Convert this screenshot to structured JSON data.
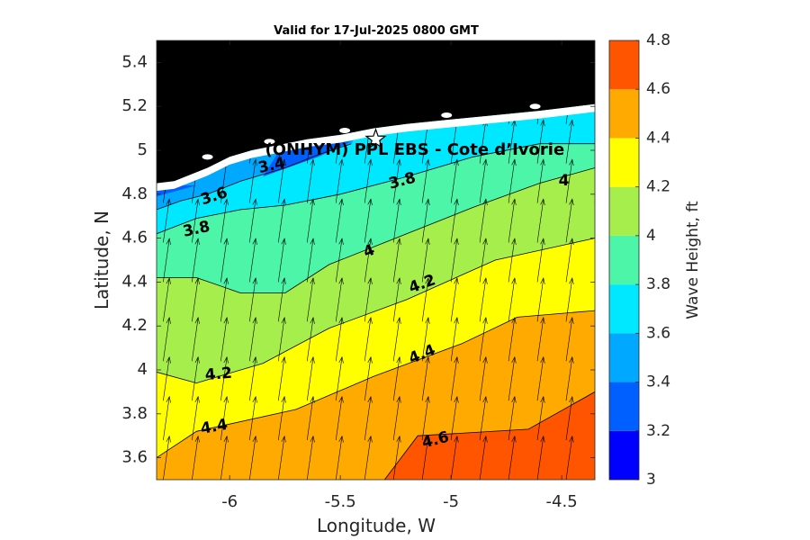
{
  "chart_data": {
    "type": "contour",
    "title": "Valid for 17-Jul-2025 0800 GMT",
    "xlabel": "Longitude, W",
    "ylabel": "Latitude, N",
    "colorbar_label": "Wave Height, ft",
    "xlim": [
      -6.33,
      -4.35
    ],
    "ylim": [
      3.5,
      5.5
    ],
    "x_ticks": [
      -6,
      -5.5,
      -5,
      -4.5
    ],
    "x_tick_labels": [
      "-6",
      "-5.5",
      "-5",
      "-4.5"
    ],
    "y_ticks": [
      3.6,
      3.8,
      4,
      4.2,
      4.4,
      4.6,
      4.8,
      5,
      5.2,
      5.4
    ],
    "y_tick_labels": [
      "3.6",
      "3.8",
      "4",
      "4.2",
      "4.4",
      "4.6",
      "4.8",
      "5",
      "5.2",
      "5.4"
    ],
    "colorbar_range": [
      3,
      4.8
    ],
    "colorbar_ticks": [
      3,
      3.2,
      3.4,
      3.6,
      3.8,
      4,
      4.2,
      4.4,
      4.6,
      4.8
    ],
    "colorbar_tick_labels": [
      "3",
      "3.2",
      "3.4",
      "3.6",
      "3.8",
      "4",
      "4.2",
      "4.4",
      "4.6",
      "4.8"
    ],
    "levels": [
      {
        "min": 3.0,
        "max": 3.2,
        "color": "#0000ff"
      },
      {
        "min": 3.2,
        "max": 3.4,
        "color": "#0060ff"
      },
      {
        "min": 3.4,
        "max": 3.6,
        "color": "#00a8ff"
      },
      {
        "min": 3.6,
        "max": 3.8,
        "color": "#00e8ff"
      },
      {
        "min": 3.8,
        "max": 4.0,
        "color": "#4cf5a8"
      },
      {
        "min": 4.0,
        "max": 4.2,
        "color": "#a6ee4c"
      },
      {
        "min": 4.2,
        "max": 4.4,
        "color": "#ffff00"
      },
      {
        "min": 4.4,
        "max": 4.6,
        "color": "#ffaa00"
      },
      {
        "min": 4.6,
        "max": 4.8,
        "color": "#ff5500"
      }
    ],
    "regions": [
      {
        "value": 4.6,
        "color": "#ff5500",
        "points": [
          [
            -6.33,
            3.5
          ],
          [
            -4.35,
            3.5
          ],
          [
            -4.35,
            5.2
          ],
          [
            -6.33,
            5.2
          ]
        ]
      },
      {
        "value": 4.4,
        "color": "#ffaa00",
        "points": [
          [
            -6.33,
            3.5
          ],
          [
            -5.3,
            3.5
          ],
          [
            -5.15,
            3.7
          ],
          [
            -4.65,
            3.73
          ],
          [
            -4.35,
            3.9
          ],
          [
            -4.35,
            5.2
          ],
          [
            -6.33,
            5.2
          ]
        ]
      },
      {
        "value": 4.2,
        "color": "#ffff00",
        "points": [
          [
            -6.33,
            3.5
          ],
          [
            -6.33,
            3.6
          ],
          [
            -6.15,
            3.72
          ],
          [
            -5.7,
            3.82
          ],
          [
            -5.35,
            3.97
          ],
          [
            -4.95,
            4.12
          ],
          [
            -4.7,
            4.24
          ],
          [
            -4.35,
            4.27
          ],
          [
            -4.35,
            5.2
          ],
          [
            -6.33,
            5.2
          ]
        ]
      },
      {
        "value": 4.0,
        "color": "#a6ee4c",
        "points": [
          [
            -6.33,
            3.5
          ],
          [
            -6.33,
            3.99
          ],
          [
            -6.15,
            3.94
          ],
          [
            -5.85,
            4.03
          ],
          [
            -5.55,
            4.19
          ],
          [
            -5.2,
            4.32
          ],
          [
            -4.8,
            4.5
          ],
          [
            -4.35,
            4.6
          ],
          [
            -4.35,
            5.2
          ],
          [
            -6.33,
            5.2
          ]
        ]
      },
      {
        "value": 3.8,
        "color": "#4cf5a8",
        "points": [
          [
            -6.33,
            3.5
          ],
          [
            -6.33,
            4.42
          ],
          [
            -6.15,
            4.42
          ],
          [
            -5.95,
            4.35
          ],
          [
            -5.75,
            4.35
          ],
          [
            -5.55,
            4.48
          ],
          [
            -5.3,
            4.58
          ],
          [
            -4.9,
            4.74
          ],
          [
            -4.6,
            4.85
          ],
          [
            -4.35,
            4.92
          ],
          [
            -4.35,
            5.2
          ],
          [
            -6.33,
            5.2
          ]
        ]
      },
      {
        "value": 3.6,
        "color": "#00e8ff",
        "points": [
          [
            -6.33,
            3.5
          ],
          [
            -6.33,
            4.62
          ],
          [
            -6.15,
            4.69
          ],
          [
            -5.95,
            4.73
          ],
          [
            -5.75,
            4.75
          ],
          [
            -5.5,
            4.8
          ],
          [
            -5.2,
            4.88
          ],
          [
            -4.9,
            4.97
          ],
          [
            -4.6,
            5.03
          ],
          [
            -4.35,
            5.03
          ],
          [
            -4.35,
            5.2
          ],
          [
            -6.33,
            5.2
          ]
        ]
      },
      {
        "value": 3.4,
        "color": "#00a8ff",
        "points": [
          [
            -6.33,
            4.73
          ],
          [
            -6.22,
            4.77
          ],
          [
            -6.1,
            4.8
          ],
          [
            -5.95,
            4.86
          ],
          [
            -5.75,
            4.92
          ],
          [
            -5.6,
            4.98
          ],
          [
            -5.45,
            5.03
          ],
          [
            -5.35,
            5.2
          ],
          [
            -6.33,
            5.2
          ]
        ]
      },
      {
        "value": 3.2,
        "color": "#0060ff",
        "points": [
          [
            -6.33,
            4.79
          ],
          [
            -6.15,
            4.84
          ],
          [
            -6.33,
            4.84
          ]
        ]
      },
      {
        "value": 3.2,
        "color": "#0060ff",
        "points": [
          [
            -5.85,
            4.88
          ],
          [
            -5.6,
            4.97
          ],
          [
            -5.45,
            5.04
          ],
          [
            -5.75,
            5.04
          ]
        ]
      }
    ],
    "contour_lines": [
      {
        "value": 4.6,
        "points": [
          [
            -5.3,
            3.5
          ],
          [
            -5.15,
            3.7
          ],
          [
            -4.65,
            3.73
          ],
          [
            -4.35,
            3.9
          ]
        ]
      },
      {
        "value": 4.4,
        "points": [
          [
            -6.33,
            3.6
          ],
          [
            -6.15,
            3.72
          ],
          [
            -5.7,
            3.82
          ],
          [
            -5.35,
            3.97
          ],
          [
            -4.95,
            4.12
          ],
          [
            -4.7,
            4.24
          ],
          [
            -4.35,
            4.27
          ]
        ]
      },
      {
        "value": 4.2,
        "points": [
          [
            -6.33,
            3.99
          ],
          [
            -6.15,
            3.94
          ],
          [
            -5.85,
            4.03
          ],
          [
            -5.55,
            4.19
          ],
          [
            -5.2,
            4.32
          ],
          [
            -4.8,
            4.5
          ],
          [
            -4.35,
            4.6
          ]
        ]
      },
      {
        "value": 4.0,
        "points": [
          [
            -6.33,
            4.42
          ],
          [
            -6.15,
            4.42
          ],
          [
            -5.95,
            4.35
          ],
          [
            -5.75,
            4.35
          ],
          [
            -5.55,
            4.48
          ],
          [
            -5.3,
            4.58
          ],
          [
            -4.9,
            4.74
          ],
          [
            -4.6,
            4.85
          ],
          [
            -4.35,
            4.92
          ]
        ]
      },
      {
        "value": 3.8,
        "points": [
          [
            -6.33,
            4.62
          ],
          [
            -6.15,
            4.69
          ],
          [
            -5.95,
            4.73
          ],
          [
            -5.75,
            4.75
          ],
          [
            -5.5,
            4.8
          ],
          [
            -5.2,
            4.88
          ],
          [
            -4.9,
            4.97
          ],
          [
            -4.6,
            5.03
          ],
          [
            -4.35,
            5.03
          ]
        ]
      },
      {
        "value": 3.6,
        "points": [
          [
            -6.33,
            4.73
          ],
          [
            -6.22,
            4.77
          ],
          [
            -6.1,
            4.8
          ],
          [
            -5.95,
            4.86
          ],
          [
            -5.75,
            4.92
          ],
          [
            -5.6,
            4.98
          ],
          [
            -5.45,
            5.03
          ]
        ]
      }
    ],
    "contour_labels": [
      {
        "text": "4.6",
        "x": -5.07,
        "y": 3.68,
        "angle": -14
      },
      {
        "text": "4.4",
        "x": -6.07,
        "y": 3.74,
        "angle": -10
      },
      {
        "text": "4.4",
        "x": -5.13,
        "y": 4.07,
        "angle": -22
      },
      {
        "text": "4.2",
        "x": -6.05,
        "y": 3.98,
        "angle": -5
      },
      {
        "text": "4.2",
        "x": -5.13,
        "y": 4.39,
        "angle": -20
      },
      {
        "text": "4",
        "x": -5.37,
        "y": 4.54,
        "angle": -22
      },
      {
        "text": "4",
        "x": -4.49,
        "y": 4.86,
        "angle": 0
      },
      {
        "text": "3.8",
        "x": -6.15,
        "y": 4.64,
        "angle": -12
      },
      {
        "text": "3.8",
        "x": -5.22,
        "y": 4.86,
        "angle": -15
      },
      {
        "text": "3.6",
        "x": -6.07,
        "y": 4.79,
        "angle": -18
      },
      {
        "text": "3.4",
        "x": -5.81,
        "y": 4.93,
        "angle": -12
      }
    ],
    "land": {
      "color": "#000000",
      "coast": [
        [
          -6.33,
          4.85
        ],
        [
          -6.25,
          4.86
        ],
        [
          -6.1,
          4.92
        ],
        [
          -6.0,
          4.97
        ],
        [
          -5.9,
          5.0
        ],
        [
          -5.8,
          5.02
        ],
        [
          -5.65,
          5.05
        ],
        [
          -5.5,
          5.07
        ],
        [
          -5.35,
          5.1
        ],
        [
          -5.2,
          5.12
        ],
        [
          -5.0,
          5.14
        ],
        [
          -4.8,
          5.16
        ],
        [
          -4.6,
          5.18
        ],
        [
          -4.35,
          5.21
        ]
      ]
    },
    "station": {
      "label": "(ONHYM) PPL EBS  - Cote d’Ivorie",
      "x": -5.34,
      "y": 5.05,
      "label_x": -5.84,
      "label_y": 5.0
    },
    "vectors": {
      "x": [
        -6.3,
        -6.17,
        -6.04,
        -5.91,
        -5.78,
        -5.65,
        -5.52,
        -5.39,
        -5.26,
        -5.13,
        -5.0,
        -4.87,
        -4.74,
        -4.61,
        -4.48,
        -4.35
      ],
      "y": [
        3.5,
        3.68,
        3.86,
        4.04,
        4.22,
        4.4,
        4.58,
        4.76,
        4.94,
        5.12
      ],
      "direction_deg": 8,
      "length_deg_lat": 0.2
    }
  }
}
